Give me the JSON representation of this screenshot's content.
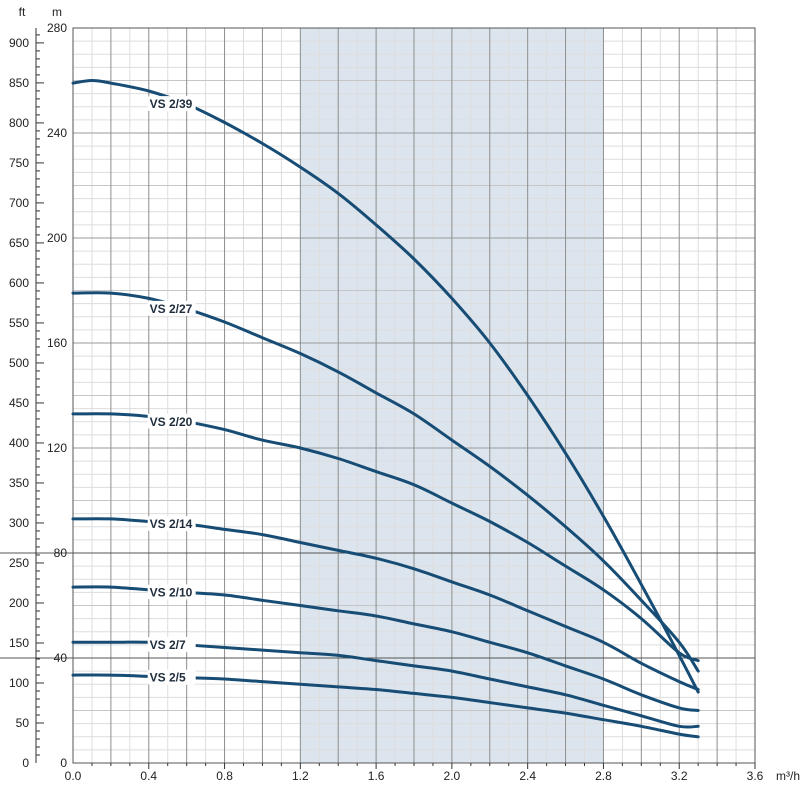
{
  "chart_data": {
    "type": "line",
    "x_unit": "m³/h",
    "y_unit_left": "ft",
    "y_unit_right": "m",
    "xlim": [
      0,
      3.6
    ],
    "ylim_m": [
      0,
      280
    ],
    "ylim_ft": [
      0,
      918.6
    ],
    "x_ticks": [
      "0.0",
      "0.4",
      "0.8",
      "1.2",
      "1.6",
      "2.0",
      "2.4",
      "2.8",
      "3.2",
      "3.6"
    ],
    "y_ticks_m": [
      "0",
      "40",
      "80",
      "120",
      "160",
      "200",
      "240",
      "280"
    ],
    "y_ticks_ft": [
      "0",
      "50",
      "100",
      "150",
      "200",
      "250",
      "300",
      "350",
      "400",
      "450",
      "500",
      "550",
      "600",
      "650",
      "700",
      "750",
      "800",
      "850",
      "900"
    ],
    "shaded_range_x": [
      1.2,
      2.8
    ],
    "grid": true,
    "colors": {
      "curve": "#174c75",
      "band": "#dce5ee",
      "grid_major": "#8e8e8e",
      "grid_minor": "#dddddd"
    },
    "series": [
      {
        "name": "VS 2/39",
        "label_x": 0.6,
        "x": [
          0,
          0.1,
          0.2,
          0.4,
          0.6,
          0.8,
          1.0,
          1.2,
          1.4,
          1.6,
          1.8,
          2.0,
          2.2,
          2.4,
          2.6,
          2.8,
          3.0,
          3.2,
          3.3
        ],
        "y": [
          259,
          260,
          259,
          256,
          251,
          244,
          236,
          227,
          217,
          205,
          192,
          177,
          160,
          140,
          118,
          94,
          68,
          41,
          27
        ]
      },
      {
        "name": "VS 2/27",
        "label_x": 0.6,
        "x": [
          0,
          0.2,
          0.4,
          0.6,
          0.8,
          1.0,
          1.2,
          1.4,
          1.6,
          1.8,
          2.0,
          2.2,
          2.4,
          2.6,
          2.8,
          3.0,
          3.2,
          3.3
        ],
        "y": [
          179,
          179,
          177,
          173,
          168,
          162,
          156,
          149,
          141,
          133,
          123,
          113,
          102,
          90,
          77,
          62,
          46,
          35
        ]
      },
      {
        "name": "VS 2/20",
        "label_x": 0.6,
        "x": [
          0,
          0.2,
          0.4,
          0.6,
          0.8,
          1.0,
          1.2,
          1.4,
          1.6,
          1.8,
          2.0,
          2.2,
          2.4,
          2.6,
          2.8,
          3.0,
          3.2,
          3.3
        ],
        "y": [
          133,
          133,
          132,
          130,
          127,
          123,
          120,
          116,
          111,
          106,
          99,
          92,
          84,
          75,
          66,
          55,
          42,
          39
        ]
      },
      {
        "name": "VS 2/14",
        "label_x": 0.6,
        "x": [
          0,
          0.2,
          0.4,
          0.6,
          0.8,
          1.0,
          1.2,
          1.4,
          1.6,
          1.8,
          2.0,
          2.2,
          2.4,
          2.6,
          2.8,
          3.0,
          3.2,
          3.3
        ],
        "y": [
          93,
          93,
          92,
          91,
          89,
          87,
          84,
          81,
          78,
          74,
          69,
          64,
          58,
          52,
          46,
          38,
          31,
          28
        ]
      },
      {
        "name": "VS 2/10",
        "label_x": 0.6,
        "x": [
          0,
          0.2,
          0.4,
          0.6,
          0.8,
          1.0,
          1.2,
          1.4,
          1.6,
          1.8,
          2.0,
          2.2,
          2.4,
          2.6,
          2.8,
          3.0,
          3.2,
          3.3
        ],
        "y": [
          67,
          67,
          66,
          65,
          64,
          62,
          60,
          58,
          56,
          53,
          50,
          46,
          42,
          37,
          32,
          26,
          21,
          20
        ]
      },
      {
        "name": "VS 2/7",
        "label_x": 0.6,
        "x": [
          0,
          0.2,
          0.4,
          0.6,
          0.8,
          1.0,
          1.2,
          1.4,
          1.6,
          1.8,
          2.0,
          2.2,
          2.4,
          2.6,
          2.8,
          3.0,
          3.2,
          3.3
        ],
        "y": [
          46,
          46,
          46,
          45,
          44,
          43,
          42,
          41,
          39,
          37,
          35,
          32,
          29,
          26,
          22,
          18,
          14,
          14
        ]
      },
      {
        "name": "VS 2/5",
        "label_x": 0.6,
        "x": [
          0,
          0.2,
          0.4,
          0.6,
          0.8,
          1.0,
          1.2,
          1.4,
          1.6,
          1.8,
          2.0,
          2.2,
          2.4,
          2.6,
          2.8,
          3.0,
          3.2,
          3.3
        ],
        "y": [
          33.5,
          33.5,
          33,
          32.5,
          32,
          31,
          30,
          29,
          28,
          26.5,
          25,
          23,
          21,
          19,
          16.5,
          14,
          11,
          10
        ]
      }
    ]
  }
}
